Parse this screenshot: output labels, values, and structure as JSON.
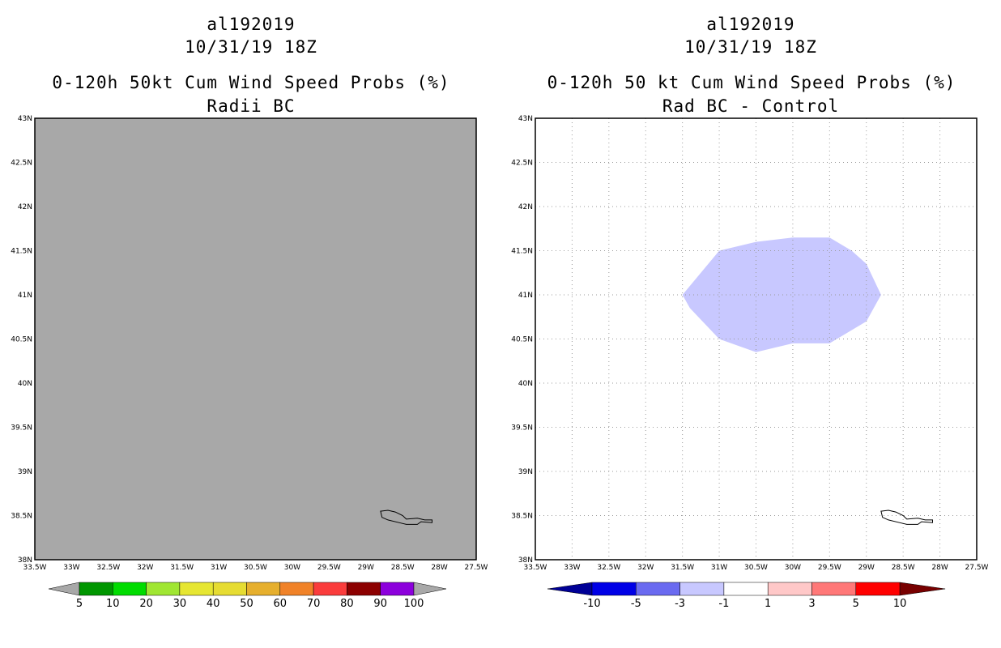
{
  "panels": [
    {
      "storm_id": "al192019",
      "datetime": "10/31/19 18Z",
      "title": "0-120h 50kt Cum Wind Speed Probs (%)",
      "subtitle": "Radii BC",
      "fill_color": "#a8a8a8",
      "colorbar": {
        "labels": [
          "5",
          "10",
          "20",
          "30",
          "40",
          "50",
          "60",
          "70",
          "80",
          "90",
          "100"
        ],
        "colors": [
          "#009600",
          "#00dc00",
          "#a0e632",
          "#e6e632",
          "#e6dc32",
          "#e6af2d",
          "#f08228",
          "#fa3c3c",
          "#8c0000",
          "#8c00dc"
        ],
        "end_color": "#a8a8a8"
      }
    },
    {
      "storm_id": "al192019",
      "datetime": "10/31/19 18Z",
      "title": "0-120h 50 kt Cum Wind Speed Probs (%)",
      "subtitle": "Rad BC - Control",
      "fill_color": "#c8c8ff",
      "colorbar": {
        "labels": [
          "-10",
          "-5",
          "-3",
          "-1",
          "1",
          "3",
          "5",
          "10"
        ],
        "colors": [
          "#0000e6",
          "#6a6af0",
          "#c8c8ff",
          "#ffffff",
          "#ffc8c8",
          "#ff7878",
          "#ff0000"
        ],
        "left_end_color": "#000096",
        "right_end_color": "#780000"
      }
    }
  ],
  "axes": {
    "lon_labels": [
      "33.5W",
      "33W",
      "32.5W",
      "32W",
      "31.5W",
      "31W",
      "30.5W",
      "30W",
      "29.5W",
      "29W",
      "28.5W",
      "28W",
      "27.5W"
    ],
    "lat_labels": [
      "38N",
      "38.5N",
      "39N",
      "39.5N",
      "40N",
      "40.5N",
      "41N",
      "41.5N",
      "42N",
      "42.5N",
      "43N"
    ],
    "lon_range": [
      -33.5,
      -27.5
    ],
    "lat_range": [
      38,
      43
    ]
  },
  "map_data": {
    "difference_region_lonlat": [
      [
        -31.5,
        41.0
      ],
      [
        -31.0,
        41.5
      ],
      [
        -30.5,
        41.6
      ],
      [
        -30.0,
        41.65
      ],
      [
        -29.5,
        41.65
      ],
      [
        -29.2,
        41.5
      ],
      [
        -29.0,
        41.35
      ],
      [
        -28.8,
        41.0
      ],
      [
        -29.0,
        40.7
      ],
      [
        -29.5,
        40.45
      ],
      [
        -30.0,
        40.45
      ],
      [
        -30.5,
        40.35
      ],
      [
        -31.0,
        40.5
      ],
      [
        -31.4,
        40.85
      ]
    ],
    "island_lonlat": [
      [
        -28.8,
        38.55
      ],
      [
        -28.7,
        38.56
      ],
      [
        -28.6,
        38.54
      ],
      [
        -28.5,
        38.5
      ],
      [
        -28.45,
        38.46
      ],
      [
        -28.3,
        38.47
      ],
      [
        -28.2,
        38.45
      ],
      [
        -28.1,
        38.45
      ],
      [
        -28.1,
        38.42
      ],
      [
        -28.25,
        38.43
      ],
      [
        -28.3,
        38.4
      ],
      [
        -28.45,
        38.4
      ],
      [
        -28.55,
        38.42
      ],
      [
        -28.7,
        38.45
      ],
      [
        -28.78,
        38.48
      ]
    ]
  }
}
